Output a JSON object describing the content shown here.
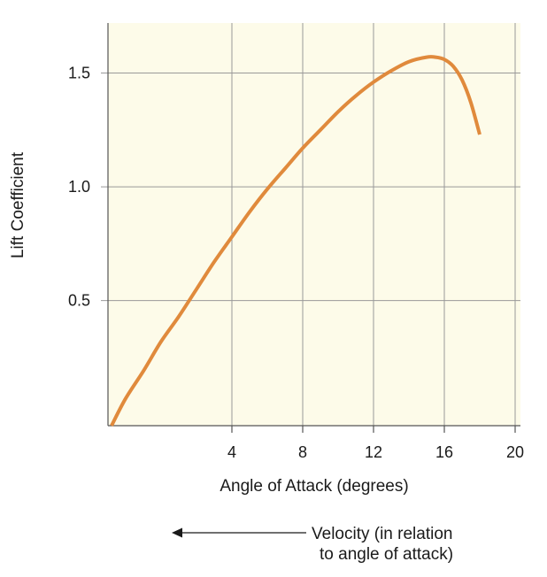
{
  "chart_data": {
    "type": "line",
    "title": "",
    "xlabel": "Angle of Attack (degrees)",
    "ylabel": "Lift Coefficient",
    "xlim": [
      -3,
      20.3
    ],
    "ylim": [
      -0.05,
      1.72
    ],
    "x_ticks": [
      4,
      8,
      12,
      16,
      20
    ],
    "x_tick_labels": [
      "4",
      "8",
      "12",
      "16",
      "20"
    ],
    "y_ticks": [
      0.5,
      1.0,
      1.5
    ],
    "y_tick_labels": [
      "0.5",
      "1.0",
      "1.5"
    ],
    "grid": true,
    "colors": {
      "line": "#e08a3c",
      "plot_background": "#fdfbe9",
      "grid": "#999999",
      "axis": "#555555"
    },
    "series": [
      {
        "x": [
          -2.8,
          -2,
          -1,
          0,
          1,
          2,
          3,
          4,
          5,
          6,
          7,
          8,
          9,
          10,
          11,
          12,
          13,
          14,
          15,
          15.5,
          16,
          16.5,
          17,
          17.5,
          18
        ],
        "y": [
          -0.05,
          0.07,
          0.19,
          0.32,
          0.43,
          0.55,
          0.67,
          0.78,
          0.89,
          0.99,
          1.08,
          1.17,
          1.25,
          1.33,
          1.4,
          1.46,
          1.51,
          1.55,
          1.57,
          1.57,
          1.56,
          1.53,
          1.47,
          1.37,
          1.23
        ]
      }
    ]
  },
  "annotation": {
    "line1": "Velocity (in relation",
    "line2": "to angle of attack)",
    "arrow_direction": "left"
  }
}
